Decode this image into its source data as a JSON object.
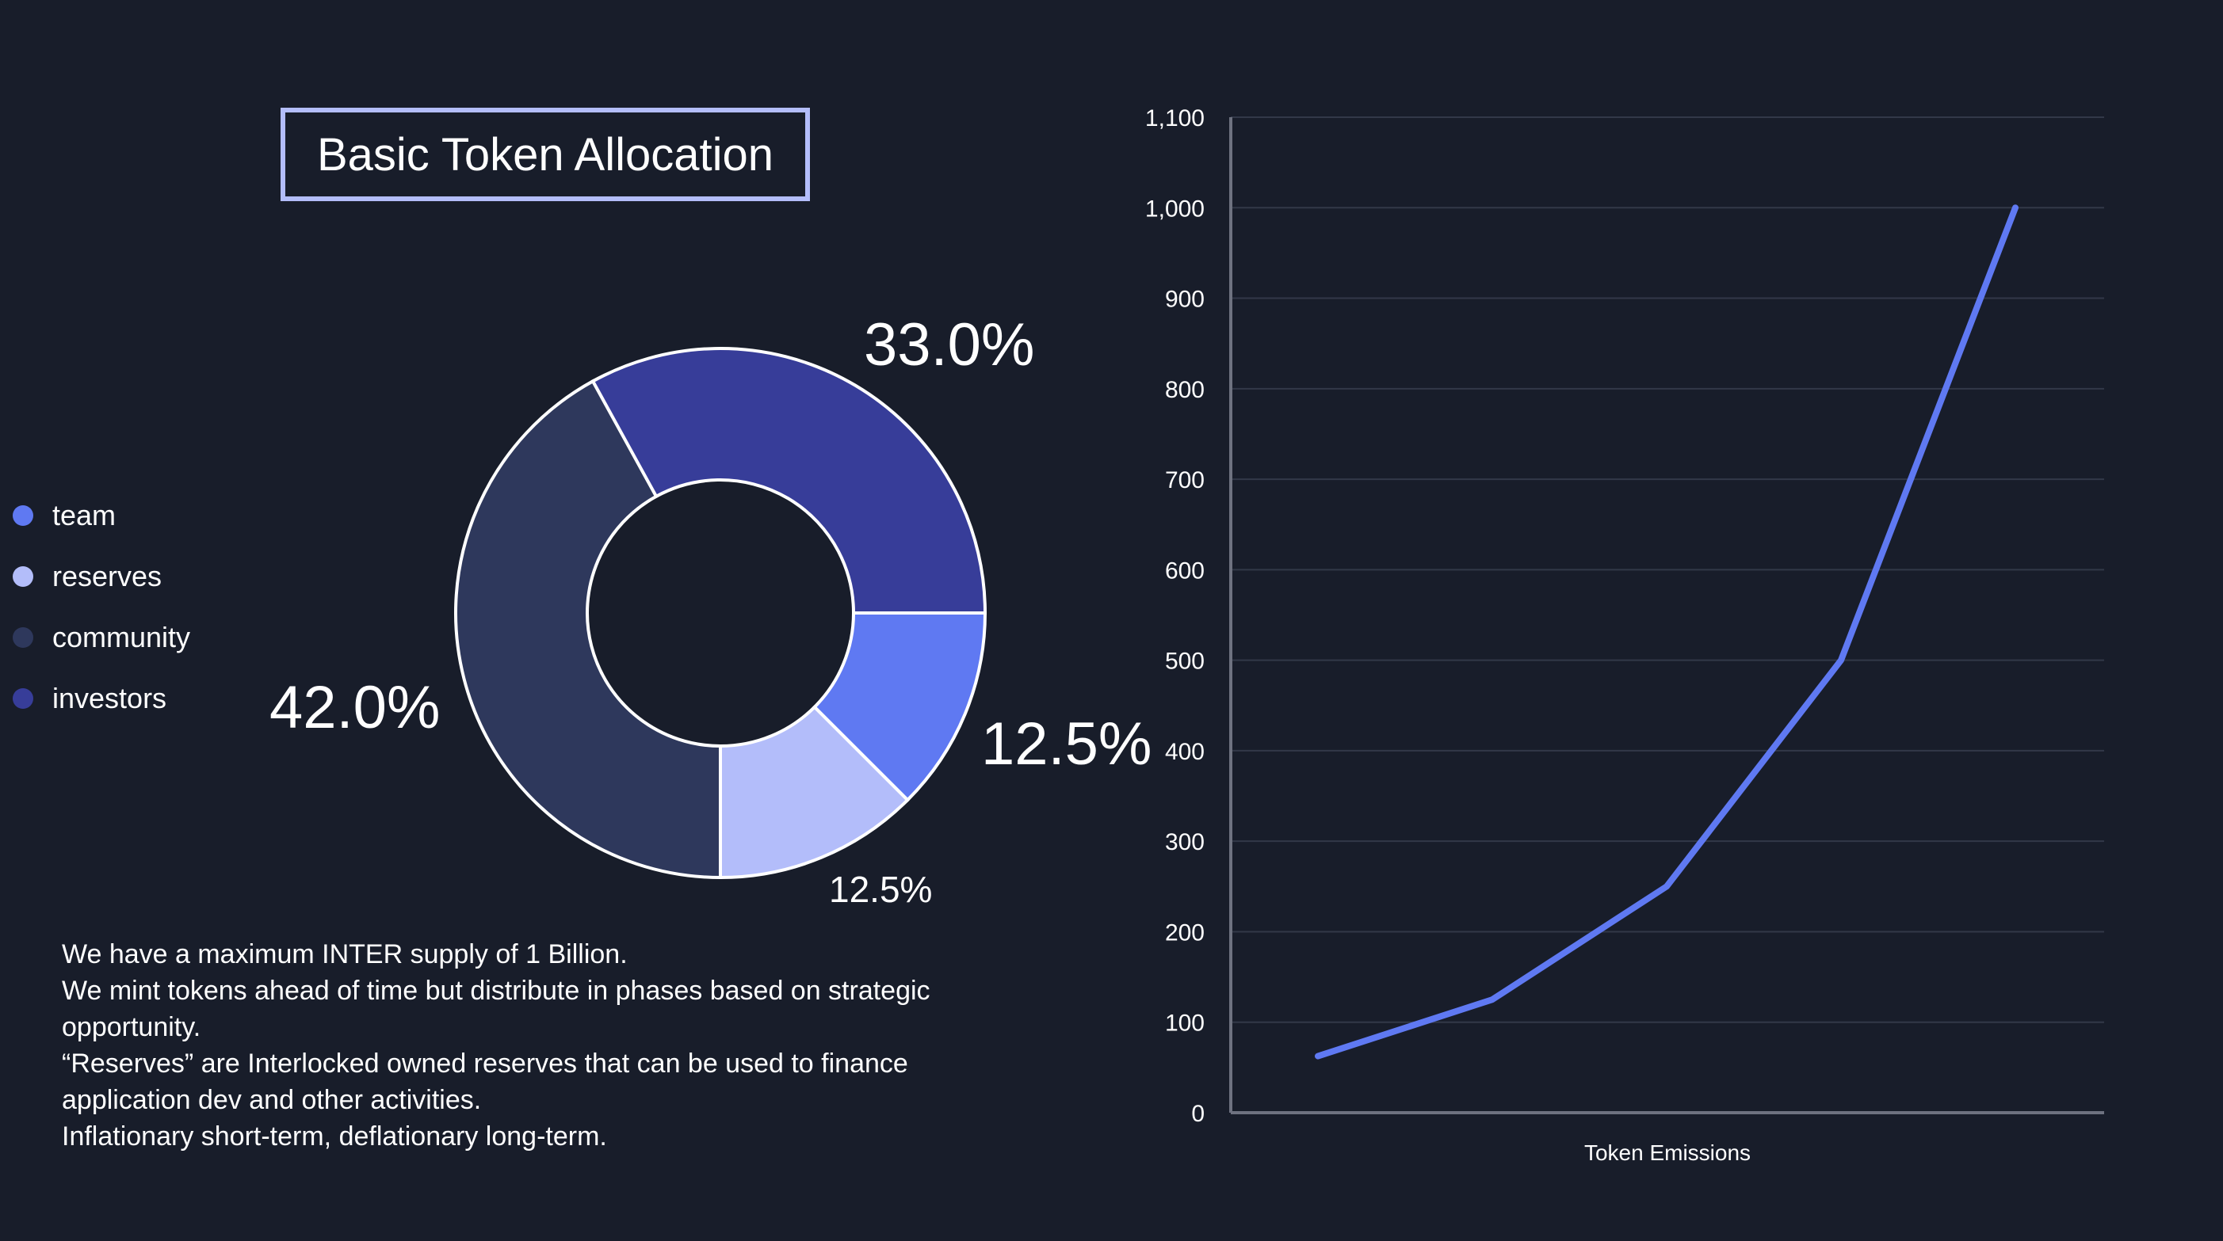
{
  "title": "Basic Token Allocation",
  "colors": {
    "background": "#181d2a",
    "team": "#5f79f2",
    "reserves": "#b3bdfa",
    "community": "#2e385c",
    "investors": "#373d99",
    "line": "#5f79f2",
    "title_border": "#b3bdfa"
  },
  "legend": [
    {
      "label": "team",
      "color": "#5f79f2"
    },
    {
      "label": "reserves",
      "color": "#b3bdfa"
    },
    {
      "label": "community",
      "color": "#2e385c"
    },
    {
      "label": "investors",
      "color": "#373d99"
    }
  ],
  "notes": [
    "We have a maximum INTER supply of 1 Billion.",
    "We mint tokens ahead of time but distribute in phases based on strategic opportunity.",
    "“Reserves” are Interlocked owned reserves that can be used to finance application dev and other activities.",
    "Inflationary short-term, deflationary long-term."
  ],
  "chart_data": [
    {
      "type": "pie",
      "donut": true,
      "slices": [
        {
          "name": "team",
          "value": 12.5,
          "label": "12.5%",
          "color": "#5f79f2"
        },
        {
          "name": "reserves",
          "value": 12.5,
          "label": "12.5%",
          "color": "#b3bdfa"
        },
        {
          "name": "community",
          "value": 42.0,
          "label": "42.0%",
          "color": "#2e385c"
        },
        {
          "name": "investors",
          "value": 33.0,
          "label": "33.0%",
          "color": "#373d99"
        }
      ],
      "legend_position": "left"
    },
    {
      "type": "line",
      "x": [
        1,
        2,
        3,
        4,
        5
      ],
      "series": [
        {
          "values": [
            62.5,
            125,
            250,
            500,
            1000
          ],
          "color": "#5f79f2"
        }
      ],
      "xlabel": "Token Emissions",
      "ylabel": "",
      "ylim": [
        0,
        1100
      ],
      "yticks": [
        0,
        100,
        200,
        300,
        400,
        500,
        600,
        700,
        800,
        900,
        1000,
        1100
      ],
      "ytick_labels": [
        "0",
        "100",
        "200",
        "300",
        "400",
        "500",
        "600",
        "700",
        "800",
        "900",
        "1,000",
        "1,100"
      ],
      "grid": true
    }
  ]
}
